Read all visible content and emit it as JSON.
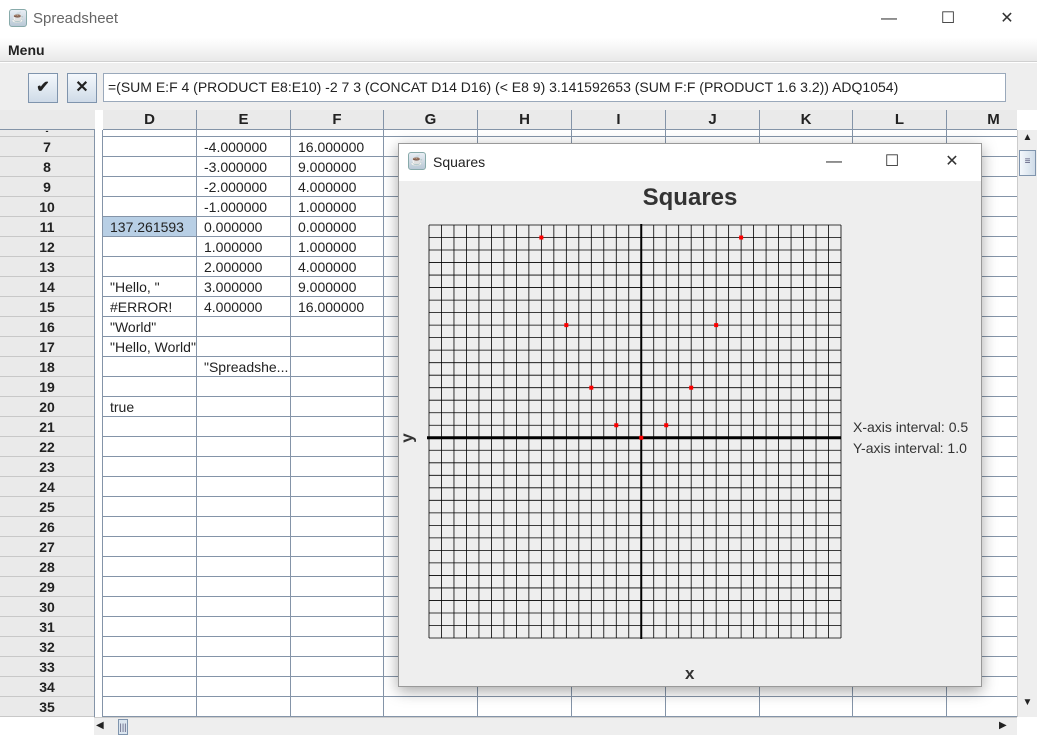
{
  "window": {
    "title": "Spreadsheet",
    "minimize": "—",
    "maximize": "☐",
    "close": "✕"
  },
  "menu": {
    "label": "Menu"
  },
  "toolbar": {
    "accept_label": "✔",
    "cancel_label": "✕",
    "formula": "=(SUM E:F 4 (PRODUCT E8:E10) -2 7 3 (CONCAT D14 D16) (< E8 9) 3.141592653 (SUM F:F (PRODUCT 1.6 3.2)) ADQ1054)"
  },
  "columns": [
    "D",
    "E",
    "F",
    "G",
    "H",
    "I",
    "J",
    "K",
    "L",
    "M"
  ],
  "rows": [
    "7",
    "8",
    "9",
    "10",
    "11",
    "12",
    "13",
    "14",
    "15",
    "16",
    "17",
    "18",
    "19",
    "20",
    "21",
    "22",
    "23",
    "24",
    "25",
    "26",
    "27",
    "28",
    "29",
    "30",
    "31",
    "32",
    "33",
    "34",
    "35"
  ],
  "cells": {
    "D": {
      "11": "137.261593",
      "14": "\"Hello, \"",
      "15": "#ERROR!",
      "16": "\"World\"",
      "17": "\"Hello, World\"",
      "20": "true"
    },
    "E": {
      "7": "-4.000000",
      "8": "-3.000000",
      "9": "-2.000000",
      "10": "-1.000000",
      "11": "0.000000",
      "12": "1.000000",
      "13": "2.000000",
      "14": "3.000000",
      "15": "4.000000",
      "18": "\"Spreadshe..."
    },
    "F": {
      "7": "16.000000",
      "8": "9.000000",
      "9": "4.000000",
      "10": "1.000000",
      "11": "0.000000",
      "12": "1.000000",
      "13": "4.000000",
      "14": "9.000000",
      "15": "16.000000"
    }
  },
  "selected_cell": "D11",
  "dialog": {
    "title": "Squares",
    "minimize": "—",
    "maximize": "☐",
    "close": "✕"
  },
  "chart_data": {
    "type": "scatter",
    "title": "Squares",
    "xlabel": "x",
    "ylabel": "y",
    "x_interval_label": "X-axis interval: 0.5",
    "y_interval_label": "Y-axis interval: 1.0",
    "x_interval": 0.5,
    "y_interval": 1.0,
    "xlim": [
      -8.5,
      8
    ],
    "ylim": [
      -16,
      17
    ],
    "grid": true,
    "point_color": "#ff0000",
    "points": [
      {
        "x": -4,
        "y": 16
      },
      {
        "x": -3,
        "y": 9
      },
      {
        "x": -2,
        "y": 4
      },
      {
        "x": -1,
        "y": 1
      },
      {
        "x": 0,
        "y": 0
      },
      {
        "x": 1,
        "y": 1
      },
      {
        "x": 2,
        "y": 4
      },
      {
        "x": 3,
        "y": 9
      },
      {
        "x": 4,
        "y": 16
      }
    ]
  }
}
